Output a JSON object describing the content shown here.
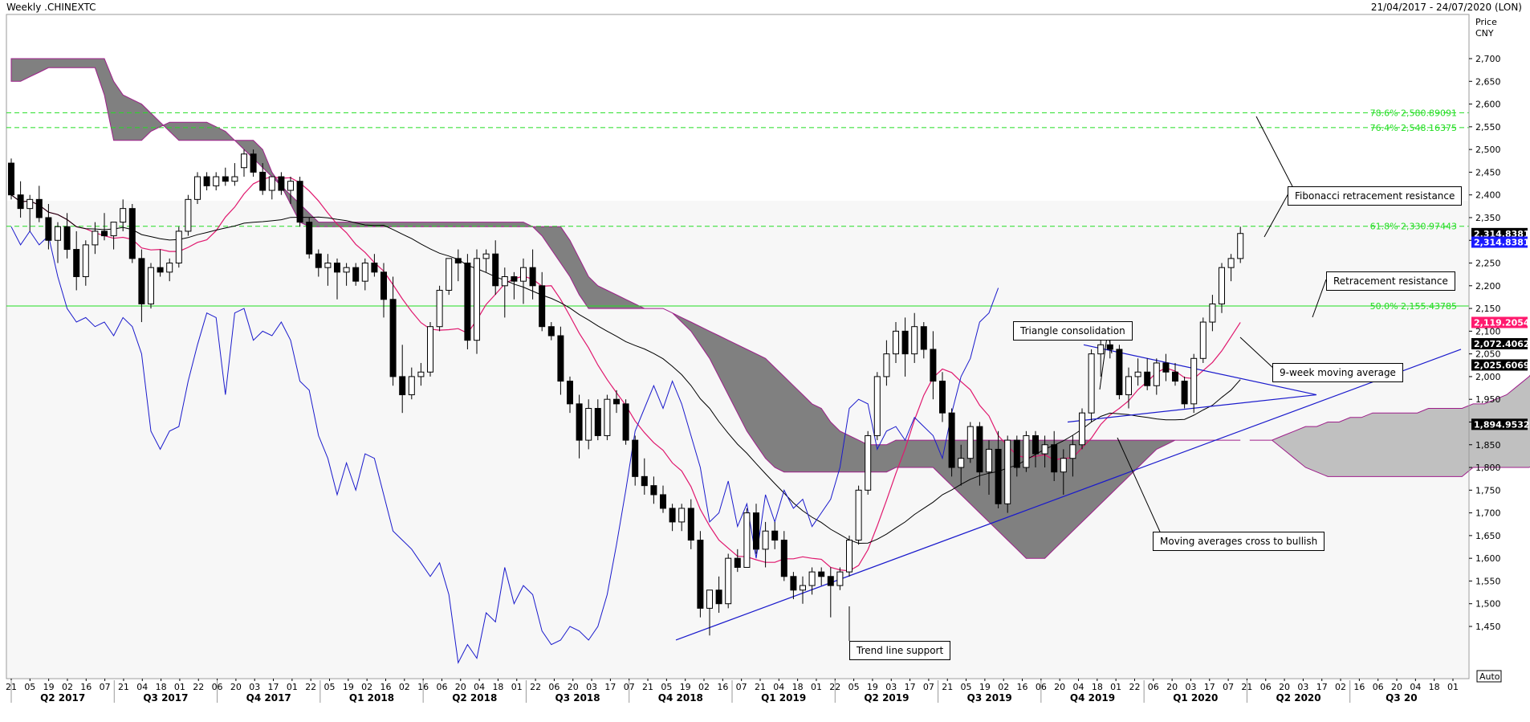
{
  "header": {
    "title": "Weekly .CHINEXTC",
    "date_range": "21/04/2017 - 24/07/2020 (LON)"
  },
  "axis": {
    "price_label": "Price",
    "currency": "CNY",
    "auto_label": "Auto"
  },
  "chart_data": {
    "type": "candlestick",
    "title": "Weekly .CHINEXTC",
    "ylim": [
      1400,
      2790
    ],
    "yticks": [
      1450,
      1500,
      1550,
      1600,
      1650,
      1700,
      1750,
      1800,
      1850,
      1900,
      1950,
      2000,
      2050,
      2100,
      2150,
      2200,
      2250,
      2300,
      2350,
      2400,
      2450,
      2500,
      2550,
      2600,
      2650,
      2700
    ],
    "ytick_labels": [
      "1,450",
      "1,500",
      "1,550",
      "1,600",
      "1,650",
      "1,700",
      "1,750",
      "1,800",
      "1,850",
      "1,900",
      "1,950",
      "2,000",
      "2,050",
      "2,100",
      "2,150",
      "2,200",
      "2,250",
      "2,300",
      "2,350",
      "2,400",
      "2,450",
      "2,500",
      "2,550",
      "2,600",
      "2,650",
      "2,700"
    ],
    "x_tick_labels": [
      "21",
      "05",
      "19",
      "02",
      "16",
      "07",
      "21",
      "04",
      "18",
      "01",
      "22",
      "06",
      "20",
      "03",
      "17",
      "01",
      "22",
      "05",
      "19",
      "02",
      "16",
      "02",
      "16",
      "06",
      "20",
      "04",
      "18",
      "01",
      "22",
      "06",
      "20",
      "03",
      "17",
      "07",
      "21",
      "05",
      "19",
      "02",
      "16",
      "07",
      "21",
      "04",
      "18",
      "01",
      "22",
      "05",
      "19",
      "03",
      "17",
      "07",
      "21",
      "05",
      "19",
      "02",
      "16",
      "06",
      "20",
      "04",
      "18",
      "01",
      "22",
      "06",
      "20",
      "03",
      "17",
      "07",
      "21",
      "06",
      "20",
      "03",
      "17",
      "02",
      "16",
      "06",
      "20",
      "04",
      "18",
      "01"
    ],
    "quarters": [
      "Q2 2017",
      "Q3 2017",
      "Q4 2017",
      "Q1 2018",
      "Q2 2018",
      "Q3 2018",
      "Q4 2018",
      "Q1 2019",
      "Q2 2019",
      "Q3 2019",
      "Q4 2019",
      "Q1 2020",
      "Q2 2020",
      "Q3 20"
    ],
    "candles": [
      [
        2470,
        2480,
        2390,
        2400
      ],
      [
        2400,
        2430,
        2350,
        2370
      ],
      [
        2370,
        2400,
        2320,
        2390
      ],
      [
        2390,
        2420,
        2340,
        2350
      ],
      [
        2350,
        2380,
        2280,
        2300
      ],
      [
        2300,
        2340,
        2250,
        2330
      ],
      [
        2330,
        2360,
        2260,
        2280
      ],
      [
        2280,
        2320,
        2190,
        2220
      ],
      [
        2220,
        2300,
        2200,
        2290
      ],
      [
        2290,
        2340,
        2270,
        2320
      ],
      [
        2320,
        2360,
        2300,
        2310
      ],
      [
        2310,
        2340,
        2280,
        2340
      ],
      [
        2340,
        2390,
        2320,
        2370
      ],
      [
        2370,
        2380,
        2250,
        2260
      ],
      [
        2260,
        2280,
        2120,
        2160
      ],
      [
        2160,
        2250,
        2150,
        2240
      ],
      [
        2240,
        2280,
        2220,
        2230
      ],
      [
        2230,
        2260,
        2210,
        2250
      ],
      [
        2250,
        2330,
        2240,
        2320
      ],
      [
        2320,
        2400,
        2310,
        2390
      ],
      [
        2390,
        2450,
        2380,
        2440
      ],
      [
        2440,
        2450,
        2410,
        2420
      ],
      [
        2420,
        2450,
        2410,
        2440
      ],
      [
        2440,
        2460,
        2420,
        2430
      ],
      [
        2430,
        2470,
        2420,
        2440
      ],
      [
        2460,
        2500,
        2440,
        2490
      ],
      [
        2490,
        2500,
        2440,
        2450
      ],
      [
        2450,
        2470,
        2400,
        2410
      ],
      [
        2410,
        2440,
        2390,
        2440
      ],
      [
        2440,
        2450,
        2400,
        2410
      ],
      [
        2410,
        2440,
        2380,
        2430
      ],
      [
        2430,
        2440,
        2330,
        2340
      ],
      [
        2340,
        2350,
        2260,
        2270
      ],
      [
        2270,
        2280,
        2220,
        2240
      ],
      [
        2240,
        2270,
        2200,
        2250
      ],
      [
        2250,
        2260,
        2170,
        2230
      ],
      [
        2230,
        2250,
        2200,
        2240
      ],
      [
        2240,
        2250,
        2200,
        2210
      ],
      [
        2210,
        2260,
        2190,
        2250
      ],
      [
        2250,
        2270,
        2220,
        2230
      ],
      [
        2230,
        2250,
        2130,
        2170
      ],
      [
        2170,
        2220,
        1980,
        2000
      ],
      [
        2000,
        2070,
        1920,
        1960
      ],
      [
        1960,
        2020,
        1950,
        2000
      ],
      [
        2000,
        2030,
        1980,
        2010
      ],
      [
        2010,
        2120,
        2000,
        2110
      ],
      [
        2110,
        2200,
        2100,
        2190
      ],
      [
        2190,
        2260,
        2180,
        2260
      ],
      [
        2260,
        2280,
        2210,
        2250
      ],
      [
        2250,
        2270,
        2060,
        2080
      ],
      [
        2080,
        2280,
        2050,
        2260
      ],
      [
        2260,
        2280,
        2230,
        2270
      ],
      [
        2270,
        2300,
        2180,
        2200
      ],
      [
        2200,
        2240,
        2130,
        2220
      ],
      [
        2220,
        2230,
        2170,
        2210
      ],
      [
        2210,
        2260,
        2160,
        2240
      ],
      [
        2240,
        2280,
        2170,
        2200
      ],
      [
        2200,
        2230,
        2100,
        2110
      ],
      [
        2110,
        2120,
        2080,
        2090
      ],
      [
        2090,
        2110,
        1960,
        1990
      ],
      [
        1990,
        2000,
        1920,
        1940
      ],
      [
        1940,
        1960,
        1820,
        1860
      ],
      [
        1860,
        1950,
        1840,
        1930
      ],
      [
        1930,
        1950,
        1860,
        1870
      ],
      [
        1870,
        1960,
        1860,
        1950
      ],
      [
        1950,
        1970,
        1920,
        1940
      ],
      [
        1940,
        1950,
        1850,
        1860
      ],
      [
        1860,
        1870,
        1760,
        1780
      ],
      [
        1780,
        1820,
        1740,
        1760
      ],
      [
        1760,
        1780,
        1720,
        1740
      ],
      [
        1740,
        1760,
        1700,
        1710
      ],
      [
        1710,
        1720,
        1660,
        1680
      ],
      [
        1680,
        1720,
        1660,
        1710
      ],
      [
        1710,
        1730,
        1620,
        1640
      ],
      [
        1640,
        1660,
        1470,
        1490
      ],
      [
        1490,
        1520,
        1430,
        1530
      ],
      [
        1530,
        1560,
        1480,
        1500
      ],
      [
        1500,
        1610,
        1490,
        1600
      ],
      [
        1600,
        1620,
        1570,
        1580
      ],
      [
        1580,
        1710,
        1580,
        1700
      ],
      [
        1700,
        1720,
        1610,
        1620
      ],
      [
        1620,
        1680,
        1580,
        1660
      ],
      [
        1660,
        1680,
        1620,
        1640
      ],
      [
        1640,
        1660,
        1550,
        1560
      ],
      [
        1560,
        1570,
        1510,
        1530
      ],
      [
        1530,
        1560,
        1500,
        1540
      ],
      [
        1540,
        1580,
        1520,
        1570
      ],
      [
        1570,
        1580,
        1540,
        1560
      ],
      [
        1560,
        1580,
        1470,
        1540
      ],
      [
        1540,
        1580,
        1530,
        1570
      ],
      [
        1570,
        1650,
        1560,
        1640
      ],
      [
        1640,
        1760,
        1630,
        1750
      ],
      [
        1750,
        1880,
        1740,
        1870
      ],
      [
        1870,
        2010,
        1860,
        2000
      ],
      [
        2000,
        2080,
        1980,
        2050
      ],
      [
        2050,
        2120,
        2030,
        2100
      ],
      [
        2100,
        2130,
        2000,
        2050
      ],
      [
        2050,
        2140,
        2030,
        2110
      ],
      [
        2110,
        2120,
        2040,
        2060
      ],
      [
        2060,
        2100,
        1950,
        1990
      ],
      [
        1990,
        2010,
        1900,
        1920
      ],
      [
        1920,
        1930,
        1780,
        1800
      ],
      [
        1800,
        1850,
        1760,
        1820
      ],
      [
        1820,
        1900,
        1810,
        1890
      ],
      [
        1890,
        1900,
        1760,
        1790
      ],
      [
        1790,
        1860,
        1740,
        1840
      ],
      [
        1840,
        1880,
        1710,
        1720
      ],
      [
        1720,
        1870,
        1700,
        1860
      ],
      [
        1860,
        1870,
        1780,
        1800
      ],
      [
        1800,
        1880,
        1790,
        1870
      ],
      [
        1870,
        1880,
        1800,
        1830
      ],
      [
        1830,
        1870,
        1800,
        1850
      ],
      [
        1850,
        1880,
        1770,
        1790
      ],
      [
        1790,
        1840,
        1740,
        1820
      ],
      [
        1820,
        1870,
        1780,
        1850
      ],
      [
        1850,
        1930,
        1840,
        1920
      ],
      [
        1920,
        2060,
        1900,
        2050
      ],
      [
        2050,
        2080,
        2000,
        2070
      ],
      [
        2070,
        2090,
        2040,
        2060
      ],
      [
        2060,
        2070,
        1950,
        1960
      ],
      [
        1960,
        2020,
        1930,
        2000
      ],
      [
        2000,
        2040,
        1980,
        2010
      ],
      [
        2010,
        2040,
        1970,
        1980
      ],
      [
        1980,
        2040,
        1960,
        2030
      ],
      [
        2030,
        2050,
        1990,
        2010
      ],
      [
        2010,
        2030,
        1980,
        1990
      ],
      [
        1990,
        2000,
        1930,
        1940
      ],
      [
        1940,
        2050,
        1920,
        2040
      ],
      [
        2040,
        2130,
        2030,
        2120
      ],
      [
        2120,
        2180,
        2100,
        2160
      ],
      [
        2160,
        2250,
        2140,
        2240
      ],
      [
        2240,
        2270,
        2210,
        2260
      ],
      [
        2260,
        2330,
        2250,
        2315
      ]
    ],
    "cloud_upper": [
      2700,
      2700,
      2700,
      2700,
      2700,
      2700,
      2700,
      2700,
      2700,
      2700,
      2700,
      2650,
      2620,
      2610,
      2600,
      2580,
      2560,
      2540,
      2520,
      2520,
      2520,
      2520,
      2520,
      2520,
      2520,
      2520,
      2520,
      2500,
      2450,
      2420,
      2380,
      2340,
      2330,
      2330,
      2330,
      2330,
      2330,
      2330,
      2330,
      2330,
      2330,
      2330,
      2330,
      2330,
      2330,
      2330,
      2330,
      2330,
      2330,
      2330,
      2330,
      2330,
      2330,
      2330,
      2330,
      2330,
      2330,
      2330,
      2330,
      2330,
      2300,
      2260,
      2220,
      2200,
      2190,
      2180,
      2170,
      2160,
      2150,
      2150,
      2150,
      2140,
      2130,
      2120,
      2110,
      2100,
      2090,
      2080,
      2070,
      2060,
      2050,
      2040,
      2020,
      2000,
      1980,
      1960,
      1940,
      1930,
      1900,
      1880,
      1870,
      1860,
      1850,
      1850,
      1850,
      1860,
      1860,
      1860,
      1860,
      1860,
      1860,
      1860,
      1860,
      1860,
      1860,
      1860,
      1860,
      1860,
      1860,
      1860,
      1860,
      1860,
      1860,
      1860,
      1860,
      1860,
      1860,
      1860,
      1860,
      1860,
      1860,
      1860,
      1860,
      1860,
      1860,
      1860,
      1860,
      1860,
      1860,
      1860,
      1860,
      1860,
      1860
    ],
    "cloud_lower": [
      2650,
      2650,
      2660,
      2670,
      2680,
      2680,
      2680,
      2680,
      2680,
      2680,
      2620,
      2520,
      2520,
      2520,
      2520,
      2540,
      2550,
      2560,
      2560,
      2560,
      2560,
      2560,
      2550,
      2540,
      2520,
      2500,
      2480,
      2460,
      2440,
      2420,
      2400,
      2380,
      2360,
      2340,
      2340,
      2340,
      2340,
      2340,
      2340,
      2340,
      2340,
      2340,
      2340,
      2340,
      2340,
      2340,
      2340,
      2340,
      2340,
      2340,
      2340,
      2340,
      2340,
      2340,
      2340,
      2340,
      2330,
      2310,
      2280,
      2250,
      2220,
      2180,
      2150,
      2150,
      2150,
      2150,
      2150,
      2150,
      2150,
      2150,
      2150,
      2140,
      2120,
      2100,
      2070,
      2040,
      2000,
      1960,
      1920,
      1880,
      1850,
      1820,
      1800,
      1790,
      1790,
      1790,
      1790,
      1790,
      1790,
      1790,
      1790,
      1790,
      1790,
      1790,
      1790,
      1800,
      1800,
      1800,
      1800,
      1800,
      1780,
      1760,
      1740,
      1720,
      1700,
      1680,
      1660,
      1640,
      1620,
      1600,
      1600,
      1600,
      1620,
      1640,
      1660,
      1680,
      1700,
      1720,
      1740,
      1760,
      1780,
      1800,
      1820,
      1840,
      1850,
      1860,
      1860,
      1860,
      1860,
      1860,
      1860,
      1860,
      1860
    ],
    "future_cloud_upper": [
      1860,
      1860,
      1860,
      1870,
      1880,
      1890,
      1890,
      1900,
      1900,
      1910,
      1910,
      1920,
      1920,
      1920,
      1920,
      1920,
      1930,
      1930,
      1930,
      1930,
      1940,
      1940,
      1950,
      1960,
      1980,
      2000,
      2030,
      2060,
      2080
    ],
    "future_cloud_lower": [
      1860,
      1860,
      1860,
      1840,
      1820,
      1800,
      1790,
      1780,
      1780,
      1780,
      1780,
      1780,
      1780,
      1780,
      1780,
      1780,
      1780,
      1780,
      1780,
      1780,
      1800,
      1800,
      1800,
      1800,
      1800,
      1800,
      1810,
      1830,
      1890
    ],
    "fib_levels": [
      {
        "label": "78.6% 2,580.89091",
        "value": 2580.89
      },
      {
        "label": "76.4% 2,548.16375",
        "value": 2548.16
      },
      {
        "label": "61.8% 2,330.97443",
        "value": 2330.97
      },
      {
        "label": "50.0% 2,155.43785",
        "value": 2155.44
      }
    ],
    "trendline": [
      [
        1420,
        0
      ],
      [
        2060,
        1
      ]
    ],
    "triangle_upper": [
      [
        2070,
        0
      ],
      [
        1960,
        1
      ]
    ],
    "triangle_lower": [
      [
        1900,
        0
      ],
      [
        1960,
        1
      ]
    ],
    "price_tags": [
      {
        "label": "2,314.83810",
        "value": 2314.84,
        "bg": "#000000",
        "fg": "#ffffff"
      },
      {
        "label": "2,314.83810",
        "value": 2296.0,
        "bg": "#1a1aff",
        "fg": "#ffffff"
      },
      {
        "label": "2,119.20545",
        "value": 2119.2,
        "bg": "#ff1a6e",
        "fg": "#ffffff"
      },
      {
        "label": "2,072.40620",
        "value": 2072.4,
        "bg": "#000000",
        "fg": "#ffffff"
      },
      {
        "label": "2,025.60695",
        "value": 2025.6,
        "bg": "#000000",
        "fg": "#ffffff"
      },
      {
        "label": "1,894.95320",
        "value": 1894.95,
        "bg": "#000000",
        "fg": "#ffffff"
      }
    ],
    "annotations": [
      {
        "label": "Fibonacci retracement resistance"
      },
      {
        "label": "Retracement resistance"
      },
      {
        "label": "Triangle consolidation"
      },
      {
        "label": "9-week moving average"
      },
      {
        "label": "Moving averages cross to bullish"
      },
      {
        "label": "Trend line support"
      }
    ],
    "colors": {
      "candle_up": "#ffffff",
      "candle_down": "#000000",
      "ma9": "#e0186e",
      "lagging": "#1a1acc",
      "baseline": "#000000",
      "cloud_dark": "#808080",
      "cloud_light": "#c0c0c0",
      "fib": "#22dd22"
    }
  }
}
